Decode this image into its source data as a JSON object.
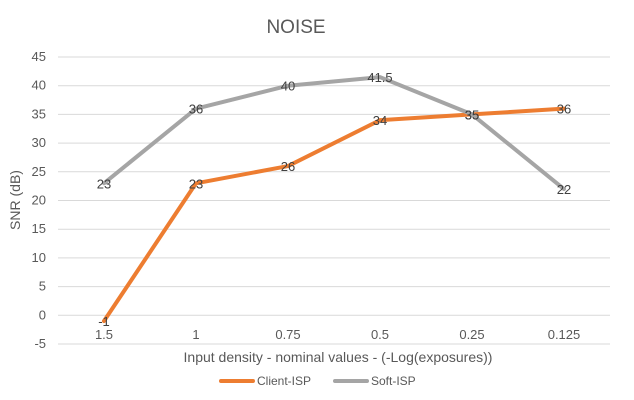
{
  "chart_data": {
    "type": "line",
    "title": "NOISE",
    "xlabel": "Input density - nominal values - (-Log(exposures))",
    "ylabel": "SNR (dB)",
    "categories": [
      "1.5",
      "1",
      "0.75",
      "0.5",
      "0.25",
      "0.125"
    ],
    "yticks": [
      "-5",
      "0",
      "5",
      "10",
      "15",
      "20",
      "25",
      "30",
      "35",
      "40",
      "45"
    ],
    "ylim": [
      -5,
      45
    ],
    "grid": true,
    "legend_position": "bottom",
    "series": [
      {
        "name": "Client-ISP",
        "color": "#ed7d31",
        "values": [
          -1,
          23,
          26,
          34,
          35,
          36
        ],
        "labels": [
          "-1",
          "23",
          "26",
          "34",
          "35",
          "36"
        ]
      },
      {
        "name": "Soft-ISP",
        "color": "#a5a5a5",
        "values": [
          23,
          36,
          40,
          41.5,
          35,
          22
        ],
        "labels": [
          "23",
          "36",
          "40",
          "41.5",
          "35",
          "22"
        ]
      }
    ]
  }
}
